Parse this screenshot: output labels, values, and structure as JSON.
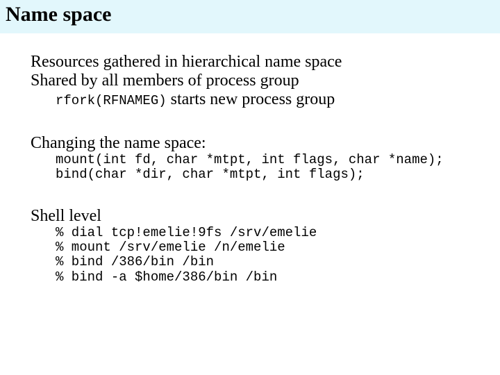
{
  "banner": {
    "title": "Name space",
    "background_color": "#e2f7fc"
  },
  "body": {
    "resources_line": "Resources gathered in hierarchical name space",
    "shared_line": "Shared by all members of process group",
    "rfork_code": "rfork(RFNAMEG)",
    "rfork_tail": " starts new process group",
    "changing_heading": "Changing the name space:",
    "mount_line": "mount(int fd, char *mtpt, int flags, char *name);",
    "bind_line": "bind(char *dir, char *mtpt, int flags);",
    "shell_heading": "Shell level",
    "shell_cmds": {
      "l1": "% dial tcp!emelie!9fs /srv/emelie",
      "l2": "% mount /srv/emelie /n/emelie",
      "l3": "% bind /386/bin /bin",
      "l4": "% bind -a $home/386/bin /bin"
    }
  },
  "colors": {
    "text": "#000000",
    "background": "#ffffff"
  },
  "fonts": {
    "body_family": "Times New Roman",
    "body_size_pt": 18,
    "mono_family": "Courier New",
    "mono_size_pt": 14,
    "title_size_pt": 22
  }
}
